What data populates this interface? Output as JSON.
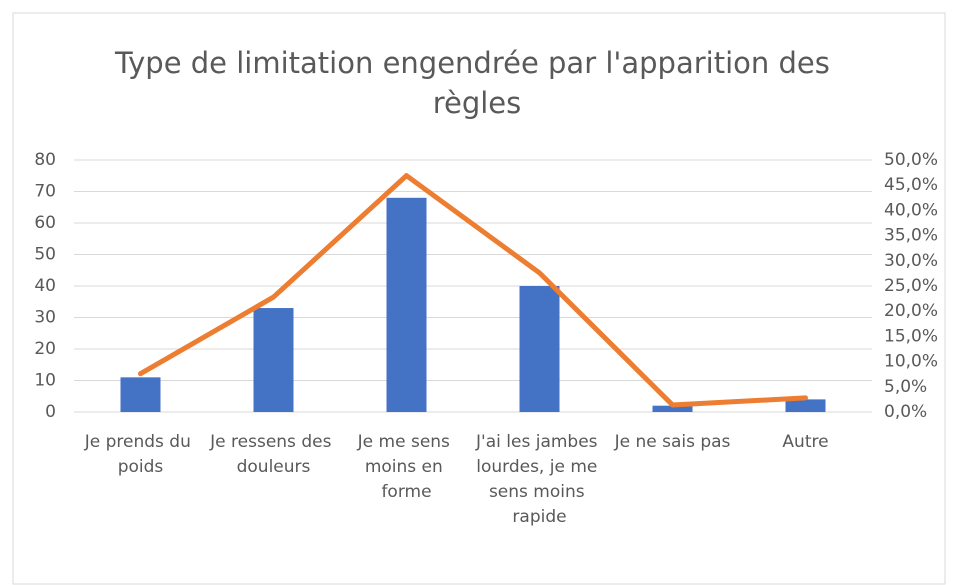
{
  "chart_data": {
    "type": "bar_line",
    "title": "Type de limitation engendrée par l'apparition des règles",
    "categories": [
      "Je prends du poids",
      "Je ressens des douleurs",
      "Je me sens moins en forme",
      "J'ai les jambes lourdes, je me sens moins rapide",
      "Je ne sais pas",
      "Autre"
    ],
    "series": [
      {
        "type": "bar",
        "color": "#4472c4",
        "values": [
          11,
          33,
          68,
          40,
          2,
          4
        ]
      },
      {
        "type": "line",
        "color": "#ed7d31",
        "axis": "y2",
        "values": [
          7.6,
          22.8,
          46.9,
          27.6,
          1.4,
          2.8
        ]
      }
    ],
    "ylim": [
      0,
      80
    ],
    "yticks": [
      0,
      10,
      20,
      30,
      40,
      50,
      60,
      70,
      80
    ],
    "y2lim": [
      0,
      50
    ],
    "y2ticks": [
      {
        "value": 0,
        "label": "0,0%"
      },
      {
        "value": 5,
        "label": "5,0%"
      },
      {
        "value": 10,
        "label": "10,0%"
      },
      {
        "value": 15,
        "label": "15,0%"
      },
      {
        "value": 20,
        "label": "20,0%"
      },
      {
        "value": 25,
        "label": "25,0%"
      },
      {
        "value": 30,
        "label": "30,0%"
      },
      {
        "value": 35,
        "label": "35,0%"
      },
      {
        "value": 40,
        "label": "40,0%"
      },
      {
        "value": 45,
        "label": "45,0%"
      },
      {
        "value": 50,
        "label": "50,0%"
      }
    ],
    "grid": true
  }
}
